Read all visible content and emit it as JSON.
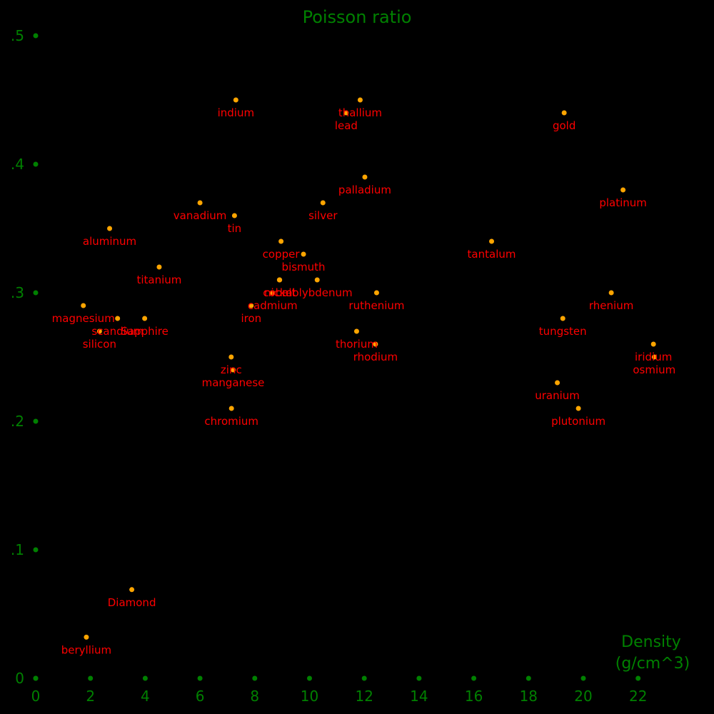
{
  "chart_data": {
    "type": "scatter",
    "title": "Poisson ratio",
    "xlabel_lines": [
      "Density",
      "(g/cm^3)"
    ],
    "ylabel": "",
    "xlim": [
      0,
      24
    ],
    "ylim": [
      0,
      0.5
    ],
    "x_ticks": [
      {
        "value": 0,
        "label": "0"
      },
      {
        "value": 2,
        "label": "2"
      },
      {
        "value": 4,
        "label": "4"
      },
      {
        "value": 6,
        "label": "6"
      },
      {
        "value": 8,
        "label": "8"
      },
      {
        "value": 10,
        "label": "10"
      },
      {
        "value": 12,
        "label": "12"
      },
      {
        "value": 14,
        "label": "14"
      },
      {
        "value": 16,
        "label": "16"
      },
      {
        "value": 18,
        "label": "18"
      },
      {
        "value": 20,
        "label": "20"
      },
      {
        "value": 22,
        "label": "22"
      }
    ],
    "y_ticks": [
      {
        "value": 0,
        "label": "0"
      },
      {
        "value": 0.1,
        "label": ".1"
      },
      {
        "value": 0.2,
        "label": ".2"
      },
      {
        "value": 0.3,
        "label": ".3"
      },
      {
        "value": 0.4,
        "label": ".4"
      },
      {
        "value": 0.5,
        "label": ".5"
      }
    ],
    "grid": false,
    "legend": "none",
    "colors": {
      "background": "#000000",
      "axis": "#008000",
      "point": "#ffa500",
      "label": "#ff0000"
    },
    "points": [
      {
        "label": "beryllium",
        "x": 1.85,
        "y": 0.032
      },
      {
        "label": "Diamond",
        "x": 3.51,
        "y": 0.069
      },
      {
        "label": "magnesium",
        "x": 1.74,
        "y": 0.29
      },
      {
        "label": "aluminum",
        "x": 2.7,
        "y": 0.35
      },
      {
        "label": "silicon",
        "x": 2.33,
        "y": 0.27
      },
      {
        "label": "scandium",
        "x": 2.99,
        "y": 0.28
      },
      {
        "label": "Sapphire",
        "x": 3.98,
        "y": 0.28
      },
      {
        "label": "titanium",
        "x": 4.51,
        "y": 0.32
      },
      {
        "label": "vanadium",
        "x": 6.0,
        "y": 0.37
      },
      {
        "label": "chromium",
        "x": 7.15,
        "y": 0.21
      },
      {
        "label": "zinc",
        "x": 7.14,
        "y": 0.25
      },
      {
        "label": "manganese",
        "x": 7.21,
        "y": 0.24
      },
      {
        "label": "tin",
        "x": 7.26,
        "y": 0.36
      },
      {
        "label": "indium",
        "x": 7.31,
        "y": 0.45
      },
      {
        "label": "iron",
        "x": 7.87,
        "y": 0.29
      },
      {
        "label": "cadmium",
        "x": 8.65,
        "y": 0.3
      },
      {
        "label": "cobalt",
        "x": 8.9,
        "y": 0.31
      },
      {
        "label": "nickel",
        "x": 8.91,
        "y": 0.31
      },
      {
        "label": "copper",
        "x": 8.96,
        "y": 0.34
      },
      {
        "label": "bismuth",
        "x": 9.78,
        "y": 0.33
      },
      {
        "label": "molybdenum",
        "x": 10.28,
        "y": 0.31
      },
      {
        "label": "silver",
        "x": 10.49,
        "y": 0.37
      },
      {
        "label": "lead",
        "x": 11.34,
        "y": 0.44
      },
      {
        "label": "thorium",
        "x": 11.72,
        "y": 0.27
      },
      {
        "label": "thallium",
        "x": 11.85,
        "y": 0.45
      },
      {
        "label": "palladium",
        "x": 12.02,
        "y": 0.39
      },
      {
        "label": "rhodium",
        "x": 12.41,
        "y": 0.26
      },
      {
        "label": "ruthenium",
        "x": 12.45,
        "y": 0.3
      },
      {
        "label": "tantalum",
        "x": 16.65,
        "y": 0.34
      },
      {
        "label": "uranium",
        "x": 19.05,
        "y": 0.23
      },
      {
        "label": "tungsten",
        "x": 19.25,
        "y": 0.28
      },
      {
        "label": "gold",
        "x": 19.3,
        "y": 0.44
      },
      {
        "label": "plutonium",
        "x": 19.82,
        "y": 0.21
      },
      {
        "label": "rhenium",
        "x": 21.02,
        "y": 0.3
      },
      {
        "label": "platinum",
        "x": 21.45,
        "y": 0.38
      },
      {
        "label": "iridium",
        "x": 22.56,
        "y": 0.26
      },
      {
        "label": "osmium",
        "x": 22.59,
        "y": 0.25
      }
    ]
  }
}
